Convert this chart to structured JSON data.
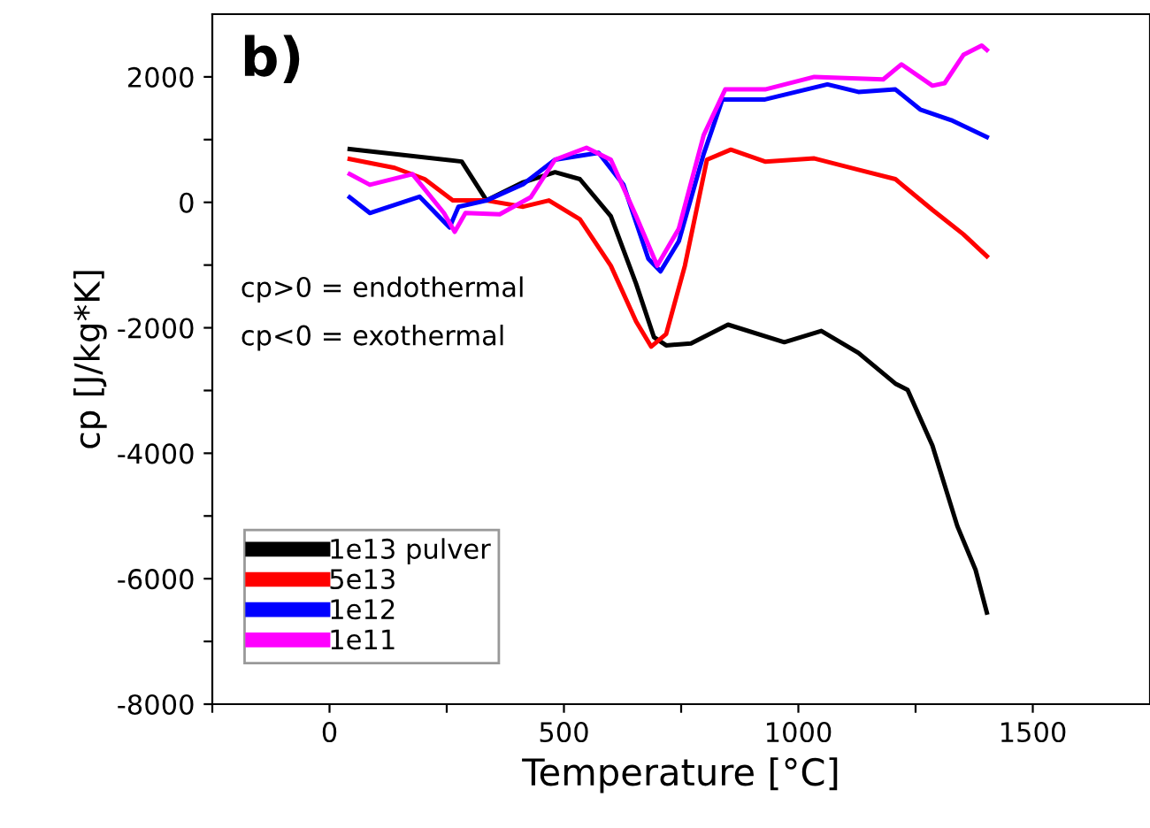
{
  "chart_data": {
    "type": "line",
    "xlabel": "Temperature [°C]",
    "ylabel": "cp [J/kg*K]",
    "xlim": [
      -250,
      1750
    ],
    "ylim": [
      -8000,
      3000
    ],
    "xticks": [
      {
        "value": -250,
        "label": null
      },
      0,
      {
        "value": 250,
        "label": null
      },
      500,
      {
        "value": 750,
        "label": null
      },
      1000,
      {
        "value": 1250,
        "label": null
      },
      1500
    ],
    "yticks": [
      -8000,
      {
        "value": -7000,
        "label": null
      },
      -6000,
      {
        "value": -5000,
        "label": null
      },
      -4000,
      {
        "value": -3000,
        "label": null
      },
      -2000,
      {
        "value": -1000,
        "label": null
      },
      0,
      {
        "value": 1000,
        "label": null
      },
      2000
    ],
    "grid": false,
    "legend": "bottom left",
    "marker": "none",
    "line_style": "solid",
    "annotations": [
      "b)",
      "cp>0 = endothermal",
      "cp<0 = exothermal"
    ],
    "series": [
      {
        "name": "1e13 pulver",
        "color": "#000000",
        "x": [
          43,
          282,
          323,
          335,
          413,
          481,
          534,
          600,
          654,
          692,
          718,
          771,
          850,
          970,
          1049,
          1128,
          1207,
          1233,
          1286,
          1339,
          1378,
          1402
        ],
        "values": [
          850,
          650,
          170,
          30,
          320,
          480,
          370,
          -220,
          -1300,
          -2150,
          -2280,
          -2250,
          -1950,
          -2230,
          -2050,
          -2400,
          -2890,
          -2990,
          -3880,
          -5160,
          -5860,
          -6540
        ]
      },
      {
        "name": "5e13",
        "color": "#ff0000",
        "x": [
          43,
          139,
          203,
          263,
          335,
          413,
          468,
          534,
          600,
          654,
          686,
          718,
          758,
          805,
          856,
          929,
          1034,
          1128,
          1207,
          1286,
          1352,
          1402
        ],
        "values": [
          690,
          550,
          370,
          30,
          30,
          -70,
          30,
          -270,
          -1010,
          -1900,
          -2300,
          -2100,
          -1010,
          680,
          840,
          650,
          700,
          520,
          370,
          -120,
          -510,
          -860
        ]
      },
      {
        "name": "1e12",
        "color": "#0000ff",
        "x": [
          43,
          86,
          192,
          256,
          275,
          335,
          413,
          481,
          574,
          627,
          680,
          706,
          745,
          798,
          838,
          929,
          1062,
          1128,
          1207,
          1260,
          1326,
          1402
        ],
        "values": [
          80,
          -170,
          90,
          -400,
          -70,
          30,
          290,
          680,
          790,
          280,
          -900,
          -1100,
          -620,
          770,
          1640,
          1640,
          1880,
          1760,
          1800,
          1480,
          1310,
          1040
        ]
      },
      {
        "name": "1e11",
        "color": "#ff00ff",
        "x": [
          43,
          86,
          177,
          244,
          267,
          290,
          363,
          429,
          481,
          548,
          600,
          654,
          699,
          745,
          798,
          844,
          929,
          1034,
          1181,
          1220,
          1286,
          1312,
          1352,
          1391,
          1402
        ],
        "values": [
          450,
          280,
          450,
          -170,
          -470,
          -170,
          -190,
          80,
          680,
          870,
          680,
          -220,
          -1010,
          -420,
          1070,
          1800,
          1800,
          2000,
          1960,
          2200,
          1860,
          1900,
          2350,
          2500,
          2430
        ]
      }
    ]
  }
}
